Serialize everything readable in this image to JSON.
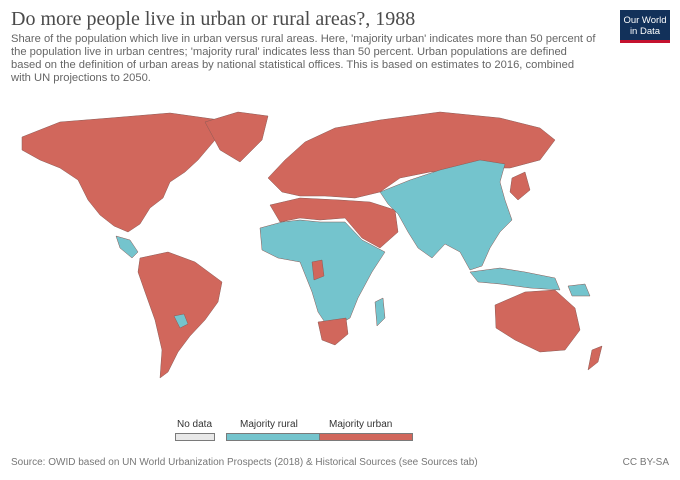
{
  "title": "Do more people live in urban or rural areas?, 1988",
  "subtitle": "Share of the population which live in urban versus rural areas. Here, 'majority urban' indicates more than 50 percent of the population live in urban centres; 'majority rural' indicates less than 50 percent. Urban populations are defined based on the definition of urban areas by national statistical offices. This is based on estimates to 2016, combined with UN projections to 2050.",
  "logo": {
    "line1": "Our World",
    "line2": "in Data"
  },
  "legend": {
    "items": [
      {
        "label": "No data",
        "color": "#e8e8e8"
      },
      {
        "label": "Majority rural",
        "color": "#74c4cd"
      },
      {
        "label": "Majority urban",
        "color": "#d1675c"
      }
    ]
  },
  "colors": {
    "urban": "#d1675c",
    "rural": "#74c4cd",
    "nodata": "#e8e8e8",
    "border": "#7a4a44"
  },
  "source": "Source: OWID based on UN World Urbanization Prospects (2018) & Historical Sources (see Sources tab)",
  "license": "CC BY-SA"
}
